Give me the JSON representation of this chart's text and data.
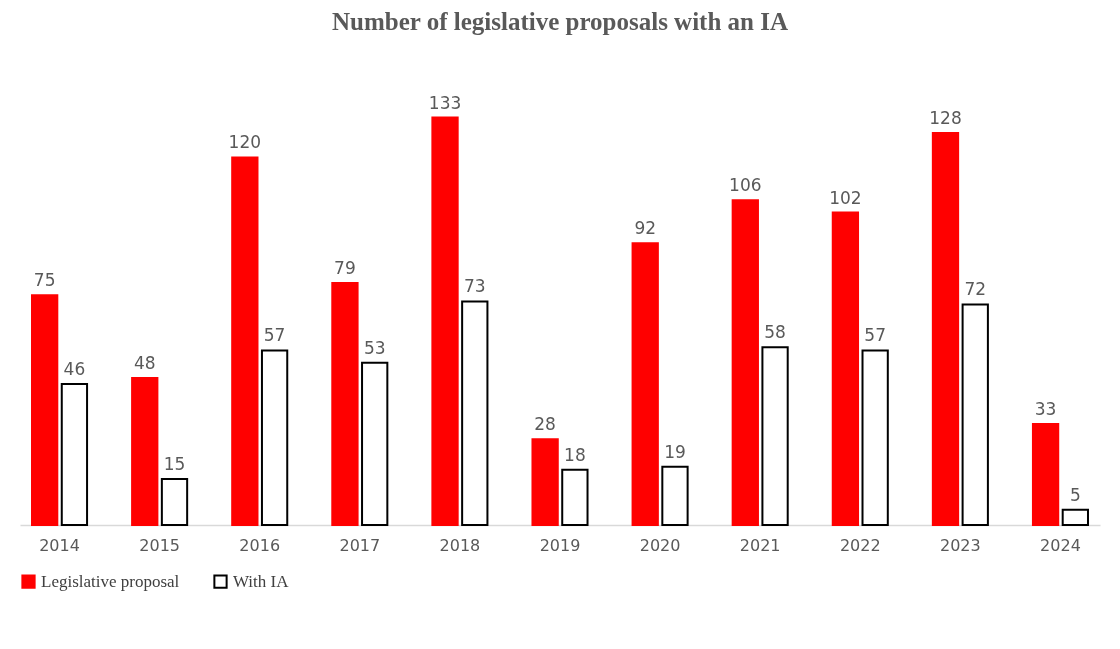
{
  "chart_data": {
    "type": "bar",
    "title": "Number of legislative proposals with an IA",
    "categories": [
      "2014",
      "2015",
      "2016",
      "2017",
      "2018",
      "2019",
      "2020",
      "2021",
      "2022",
      "2023",
      "2024"
    ],
    "series": [
      {
        "name": "Legislative proposal",
        "color": "#ff0000",
        "values": [
          75,
          48,
          120,
          79,
          133,
          28,
          92,
          106,
          102,
          128,
          33
        ]
      },
      {
        "name": "With IA",
        "color": "#ffffff",
        "values": [
          46,
          15,
          57,
          53,
          73,
          18,
          19,
          58,
          57,
          72,
          5
        ]
      }
    ],
    "data_labels": true,
    "legend": "bottom",
    "grid": false
  }
}
